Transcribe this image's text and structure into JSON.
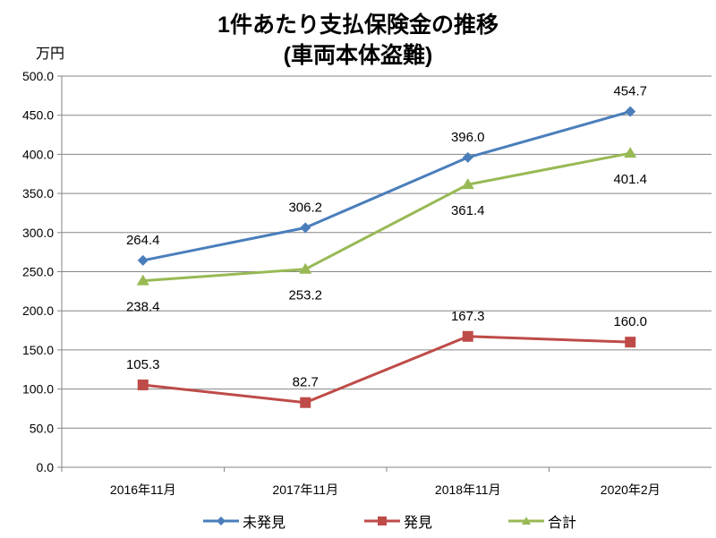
{
  "chart_data": {
    "type": "line",
    "title": "1件あたり支払保険金の推移",
    "subtitle": "(車両本体盗難)",
    "ylabel": "万円",
    "xlabel": "",
    "categories": [
      "2016年11月",
      "2017年11月",
      "2018年11月",
      "2020年2月"
    ],
    "ylim": [
      0,
      500
    ],
    "yticks": [
      "0.0",
      "50.0",
      "100.0",
      "150.0",
      "200.0",
      "250.0",
      "300.0",
      "350.0",
      "400.0",
      "450.0",
      "500.0"
    ],
    "grid": true,
    "legend_position": "bottom",
    "series": [
      {
        "name": "未発見",
        "values": [
          264.4,
          306.2,
          396.0,
          454.7
        ],
        "labels": [
          "264.4",
          "306.2",
          "396.0",
          "454.7"
        ],
        "color": "#4a7ebb",
        "marker": "diamond"
      },
      {
        "name": "発見",
        "values": [
          105.3,
          82.7,
          167.3,
          160.0
        ],
        "labels": [
          "105.3",
          "82.7",
          "167.3",
          "160.0"
        ],
        "color": "#be4b48",
        "marker": "square"
      },
      {
        "name": "合計",
        "values": [
          238.4,
          253.2,
          361.4,
          401.4
        ],
        "labels": [
          "238.4",
          "253.2",
          "361.4",
          "401.4"
        ],
        "color": "#98b954",
        "marker": "triangle"
      }
    ]
  }
}
